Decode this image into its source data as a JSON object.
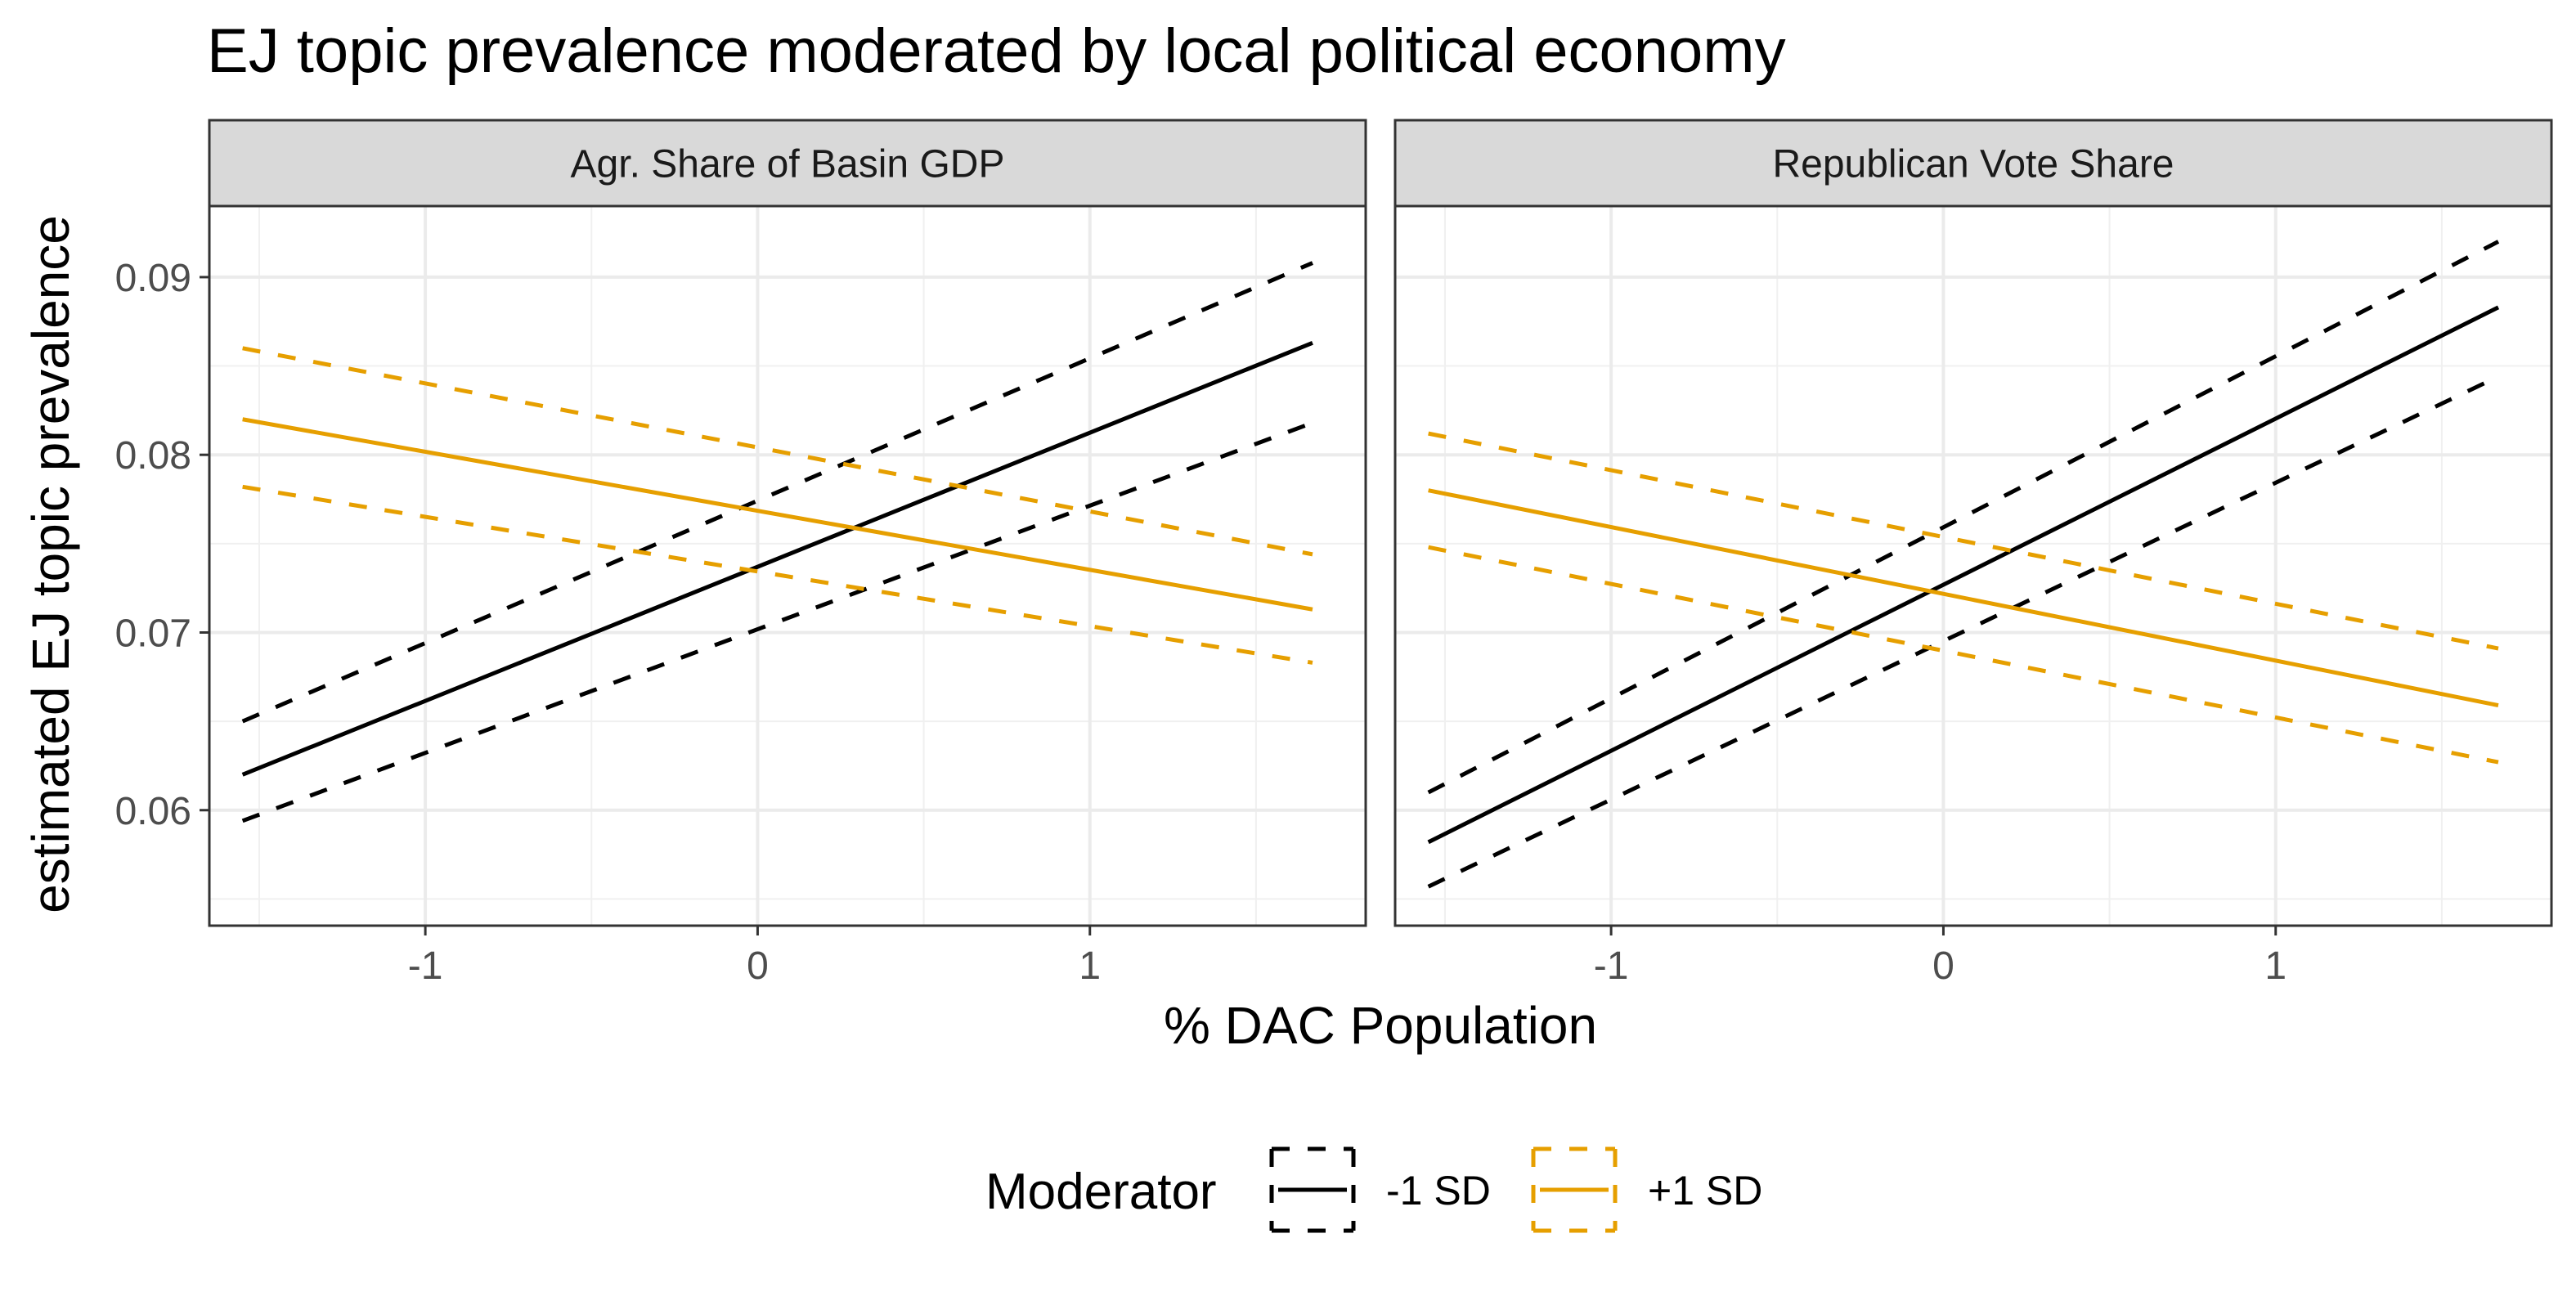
{
  "chart_data": {
    "type": "line",
    "title": "EJ topic prevalence moderated by local political economy",
    "xlabel": "% DAC Population",
    "ylabel": "estimated EJ topic prevalence",
    "xlim": [
      -1.65,
      1.83
    ],
    "ylim": [
      0.0535,
      0.094
    ],
    "x_ticks": [
      -1,
      0,
      1
    ],
    "x_tick_labels": [
      "-1",
      "0",
      "1"
    ],
    "y_ticks": [
      0.06,
      0.07,
      0.08,
      0.09
    ],
    "y_tick_labels": [
      "0.06",
      "0.07",
      "0.08",
      "0.09"
    ],
    "grid": true,
    "legend": {
      "title": "Moderator",
      "position": "bottom",
      "entries": [
        {
          "label": "-1 SD",
          "color": "#000000"
        },
        {
          "label": "+1 SD",
          "color": "#E69F00"
        }
      ]
    },
    "panels": [
      {
        "strip": "Agr. Share of Basin GDP",
        "series": [
          {
            "name": "-1 SD",
            "color": "#000000",
            "x": [
              -1.55,
              1.67
            ],
            "estimate": [
              0.062,
              0.0863
            ],
            "lower": [
              0.0594,
              0.0818
            ],
            "upper": [
              0.065,
              0.0908
            ]
          },
          {
            "name": "+1 SD",
            "color": "#E69F00",
            "x": [
              -1.55,
              1.67
            ],
            "estimate": [
              0.082,
              0.0713
            ],
            "lower": [
              0.0782,
              0.0683
            ],
            "upper": [
              0.086,
              0.0744
            ]
          }
        ]
      },
      {
        "strip": "Republican Vote Share",
        "series": [
          {
            "name": "-1 SD",
            "color": "#000000",
            "x": [
              -1.55,
              1.67
            ],
            "estimate": [
              0.0582,
              0.0883
            ],
            "lower": [
              0.0557,
              0.0844
            ],
            "upper": [
              0.061,
              0.092
            ]
          },
          {
            "name": "+1 SD",
            "color": "#E69F00",
            "x": [
              -1.55,
              1.67
            ],
            "estimate": [
              0.078,
              0.0659
            ],
            "lower": [
              0.0748,
              0.0627
            ],
            "upper": [
              0.0812,
              0.0691
            ]
          }
        ]
      }
    ]
  }
}
